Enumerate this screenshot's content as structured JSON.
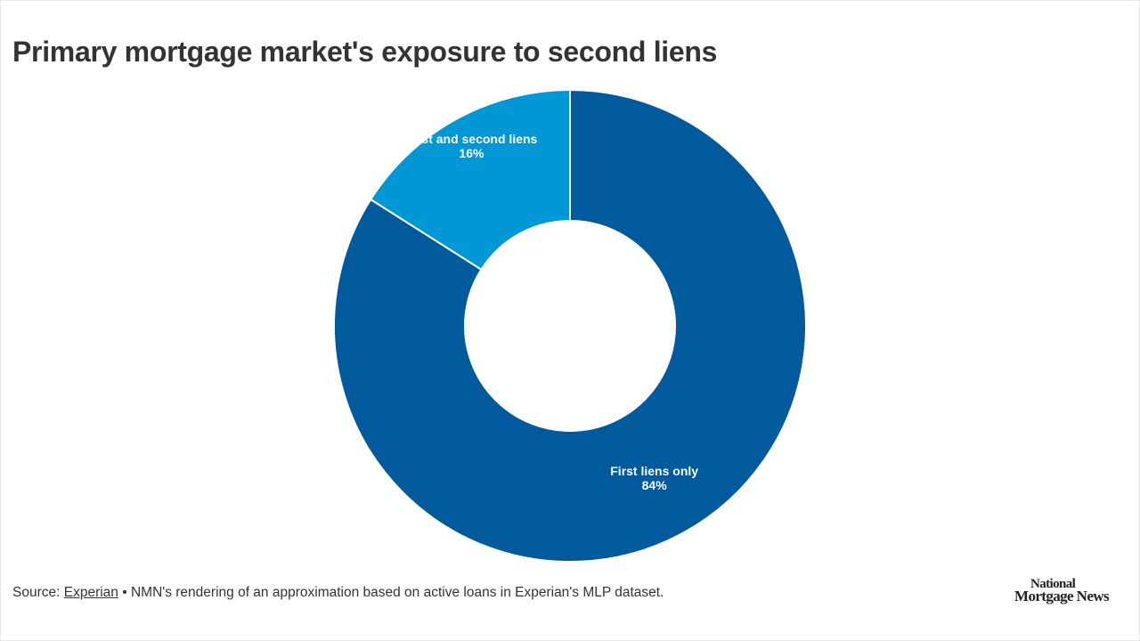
{
  "chart_data": {
    "type": "pie",
    "variant": "donut",
    "title": "Primary mortgage market's exposure to second liens",
    "slices": [
      {
        "label": "First liens only",
        "value": 84,
        "value_label": "84%",
        "color": "#005a9c"
      },
      {
        "label": "First and second liens",
        "value": 16,
        "value_label": "16%",
        "color": "#0097d6"
      }
    ]
  },
  "footer": {
    "source_prefix": "Source: ",
    "source_link": "Experian",
    "source_note": " • NMN's rendering of an approximation based on active loans in Experian's MLP dataset."
  },
  "logo": {
    "line1": "National",
    "line2": "Mortgage News"
  }
}
